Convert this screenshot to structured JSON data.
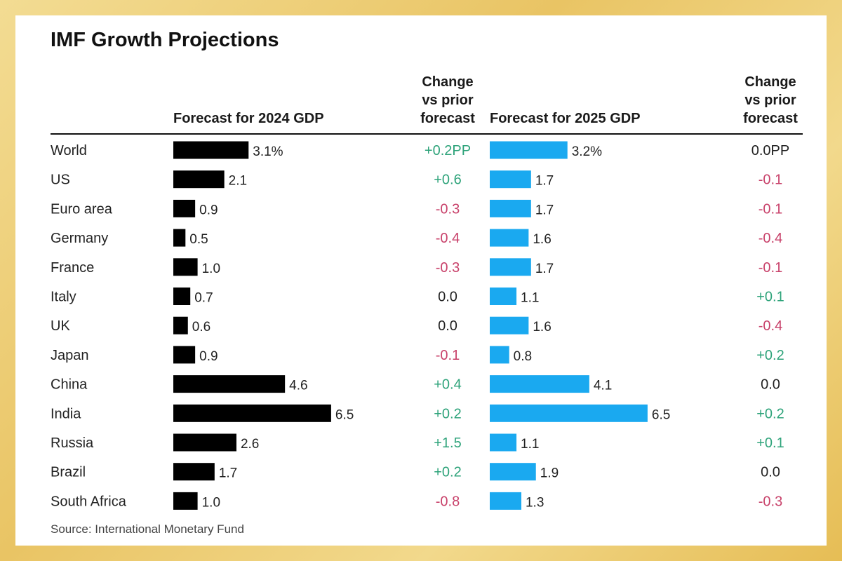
{
  "chart_data": {
    "type": "bar",
    "title": "IMF Growth Projections",
    "source": "Source: International Monetary Fund",
    "categories": [
      "World",
      "US",
      "Euro area",
      "Germany",
      "France",
      "Italy",
      "UK",
      "Japan",
      "China",
      "India",
      "Russia",
      "Brazil",
      "South Africa"
    ],
    "series": [
      {
        "name": "Forecast for 2024 GDP",
        "color": "#000000",
        "values": [
          3.1,
          2.1,
          0.9,
          0.5,
          1.0,
          0.7,
          0.6,
          0.9,
          4.6,
          6.5,
          2.6,
          1.7,
          1.0
        ],
        "labels": [
          "3.1%",
          "2.1",
          "0.9",
          "0.5",
          "1.0",
          "0.7",
          "0.6",
          "0.9",
          "4.6",
          "6.5",
          "2.6",
          "1.7",
          "1.0"
        ],
        "change_header": [
          "Change",
          "vs prior",
          "forecast"
        ],
        "change": [
          "+0.2PP",
          "+0.6",
          "-0.3",
          "-0.4",
          "-0.3",
          "0.0",
          "0.0",
          "-0.1",
          "+0.4",
          "+0.2",
          "+1.5",
          "+0.2",
          "-0.8"
        ]
      },
      {
        "name": "Forecast for 2025 GDP",
        "color": "#1aa9f0",
        "values": [
          3.2,
          1.7,
          1.7,
          1.6,
          1.7,
          1.1,
          1.6,
          0.8,
          4.1,
          6.5,
          1.1,
          1.9,
          1.3
        ],
        "labels": [
          "3.2%",
          "1.7",
          "1.7",
          "1.6",
          "1.7",
          "1.1",
          "1.6",
          "0.8",
          "4.1",
          "6.5",
          "1.1",
          "1.9",
          "1.3"
        ],
        "change_header": [
          "Change",
          "vs prior",
          "forecast"
        ],
        "change": [
          "0.0PP",
          "-0.1",
          "-0.1",
          "-0.4",
          "-0.1",
          "+0.1",
          "-0.4",
          "+0.2",
          "0.0",
          "+0.2",
          "+0.1",
          "0.0",
          "-0.3"
        ]
      }
    ],
    "colors": {
      "positive": "#2ea37a",
      "negative": "#c8416a",
      "neutral": "#222222",
      "rule": "#111111"
    }
  }
}
